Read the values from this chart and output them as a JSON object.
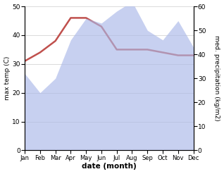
{
  "months": [
    "Jan",
    "Feb",
    "Mar",
    "Apr",
    "May",
    "Jun",
    "Jul",
    "Aug",
    "Sep",
    "Oct",
    "Nov",
    "Dec"
  ],
  "temp_C": [
    31,
    34,
    38,
    46,
    46,
    43,
    35,
    35,
    35,
    34,
    33,
    33
  ],
  "precip_kg": [
    32,
    24,
    30,
    46,
    55,
    53,
    58,
    62,
    50,
    46,
    54,
    43
  ],
  "temp_color": "#c0504d",
  "precip_color": "#aab8e8",
  "precip_fill_alpha": 0.65,
  "xlabel": "date (month)",
  "ylabel_left": "max temp (C)",
  "ylabel_right": "med. precipitation (kg/m2)",
  "ylim_left": [
    0,
    50
  ],
  "ylim_right": [
    0,
    60
  ],
  "yticks_left": [
    0,
    10,
    20,
    30,
    40,
    50
  ],
  "yticks_right": [
    0,
    10,
    20,
    30,
    40,
    50,
    60
  ],
  "bg_color": "#ffffff",
  "grid_color": "#cccccc"
}
